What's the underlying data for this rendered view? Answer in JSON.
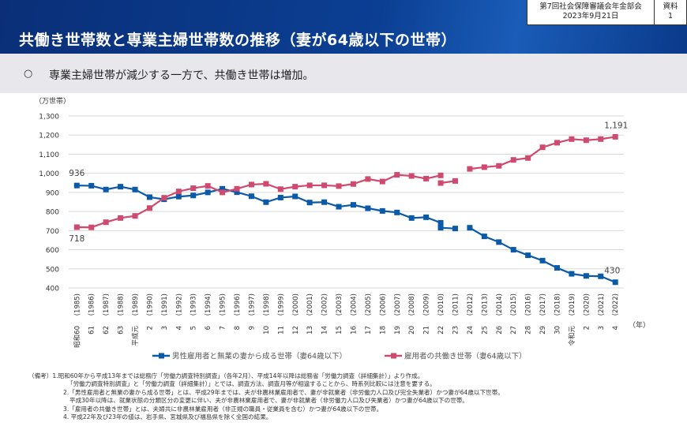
{
  "header": {
    "title": "共働き世帯数と専業主婦世帯数の推移（妻が64歳以下の世帯）",
    "meeting": "第7回社会保障審議会年金部会",
    "date": "2023年9月21日",
    "doc_label": "資料",
    "doc_number": "1"
  },
  "summary": {
    "bullet": "○",
    "text": "専業主婦世帯が減少する一方で、共働き世帯は増加。"
  },
  "chart_data": {
    "type": "line",
    "ylabel": "（万世帯）",
    "xlabel": "（年）",
    "ylim": [
      400,
      1300
    ],
    "yticks": [
      "400",
      "500",
      "600",
      "700",
      "800",
      "900",
      "1,000",
      "1,100",
      "1,200",
      "1,300"
    ],
    "grid": true,
    "legend_position": "bottom",
    "x": [
      1985,
      1986,
      1987,
      1988,
      1989,
      1990,
      1991,
      1992,
      1993,
      1994,
      1995,
      1996,
      1997,
      1998,
      1999,
      2000,
      2001,
      2002,
      2003,
      2004,
      2005,
      2006,
      2007,
      2008,
      2009,
      2010,
      2011,
      2012,
      2013,
      2014,
      2015,
      2016,
      2017,
      2018,
      2019,
      2020,
      2021,
      2022
    ],
    "era_labels": [
      "昭和60",
      "61",
      "62",
      "63",
      "平成元",
      "2",
      "3",
      "4",
      "5",
      "6",
      "7",
      "8",
      "9",
      "10",
      "11",
      "12",
      "13",
      "14",
      "15",
      "16",
      "17",
      "18",
      "19",
      "20",
      "21",
      "22",
      "23",
      "24",
      "25",
      "26",
      "27",
      "28",
      "29",
      "30",
      "令和元",
      "2",
      "3",
      "4"
    ],
    "year_labels": [
      "(1985)",
      "(1986)",
      "(1987)",
      "(1988)",
      "(1989)",
      "(1990)",
      "(1991)",
      "(1992)",
      "(1993)",
      "(1994)",
      "(1995)",
      "(1996)",
      "(1997)",
      "(1998)",
      "(1999)",
      "(2000)",
      "(2001)",
      "(2002)",
      "(2003)",
      "(2004)",
      "(2005)",
      "(2006)",
      "(2007)",
      "(2008)",
      "(2009)",
      "(2010)",
      "(2011)",
      "(2012)",
      "(2013)",
      "(2014)",
      "(2015)",
      "(2016)",
      "(2017)",
      "(2018)",
      "(2019)",
      "(2020)",
      "(2021)",
      "(2022)"
    ],
    "series": [
      {
        "name": "男性雇用者と無業の妻から成る世帯（妻64歳以下）",
        "color": "#0a5aa8",
        "values": [
          936,
          935,
          915,
          930,
          915,
          875,
          864,
          878,
          884,
          900,
          919,
          901,
          880,
          849,
          873,
          879,
          847,
          849,
          825,
          835,
          817,
          803,
          795,
          766,
          770,
          741,
          null,
          715,
          670,
          640,
          600,
          571,
          543,
          505,
          474,
          463,
          461,
          430
        ],
        "values_excluding_iwate_miyagi_fukushima": {
          "2010": 715,
          "2011": 711
        },
        "labels": {
          "1985": "936",
          "2022": "430"
        }
      },
      {
        "name": "雇用者の共働き世帯（妻64歳以下）",
        "color": "#d0496e",
        "values": [
          718,
          717,
          744,
          766,
          777,
          818,
          872,
          905,
          922,
          934,
          900,
          919,
          941,
          945,
          917,
          930,
          937,
          937,
          933,
          944,
          970,
          957,
          992,
          986,
          972,
          989,
          null,
          1023,
          1032,
          1039,
          1070,
          1080,
          1136,
          1160,
          1179,
          1173,
          1179,
          1191
        ],
        "values_excluding_iwate_miyagi_fukushima": {
          "2010": 949,
          "2011": 960
        },
        "labels": {
          "1985": "718",
          "2022": "1,191"
        }
      }
    ]
  },
  "notes": [
    "（備考）1.昭和60年から平成13年までは総務庁「労働力調査特別調査」（各年2月）、平成14年以降は総務省「労働力調査（詳細集計）」より作成。",
    "「労働力調査特別調査」と「労働力調査（詳細集計）」とでは、調査方法、調査月等が相違することから、時系列比較には注意を要する。",
    "2.「男性雇用者と無業の妻から成る世帯」とは、平成29年までは、夫が非農林業雇用者で、妻が非就業者（非労働力人口及び完全失業者）かつ妻が64歳以下世帯。",
    "平成30年以降は、就業状態の分類区分の変更に伴い、夫が非農林業雇用者で、妻が非就業者（非労働力人口及び失業者）かつ妻が64歳以下の世帯。",
    "3.「雇用者の共働き世帯」とは、夫婦共に非農林業雇用者（非正規の職員・従業員を含む）かつ妻が64歳以下の世帯。",
    "4. 平成22年及び23年の値は、岩手県、宮城県及び福島県を除く全国の結果。"
  ]
}
